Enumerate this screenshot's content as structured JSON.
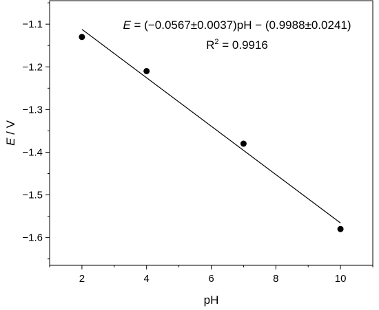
{
  "chart_data": {
    "type": "scatter",
    "title": "",
    "xlabel": "pH",
    "ylabel_var": "E",
    "ylabel_unit": " / V",
    "xlim": [
      1,
      11
    ],
    "ylim": [
      -1.665,
      -1.045
    ],
    "xticks": [
      2,
      4,
      6,
      8,
      10
    ],
    "xtick_labels": [
      "2",
      "4",
      "6",
      "8",
      "10"
    ],
    "yticks": [
      -1.1,
      -1.2,
      -1.3,
      -1.4,
      -1.5,
      -1.6
    ],
    "ytick_labels": [
      "−1.1",
      "−1.2",
      "−1.3",
      "−1.4",
      "−1.5",
      "−1.6"
    ],
    "grid": false,
    "series": [
      {
        "points": [
          {
            "x": 2,
            "y": -1.13
          },
          {
            "x": 4,
            "y": -1.21
          },
          {
            "x": 7,
            "y": -1.38
          },
          {
            "x": 10,
            "y": -1.58
          }
        ]
      }
    ],
    "fit": {
      "slope": -0.0567,
      "intercept": -0.9988,
      "x_range": [
        2,
        10
      ],
      "equation_var": "E",
      "equation_rest": " = (−0.0567±0.0037)pH − (0.9988±0.0241)",
      "r2_base": "R",
      "r2_sup": "2",
      "r2_rest": " = 0.9916"
    }
  }
}
